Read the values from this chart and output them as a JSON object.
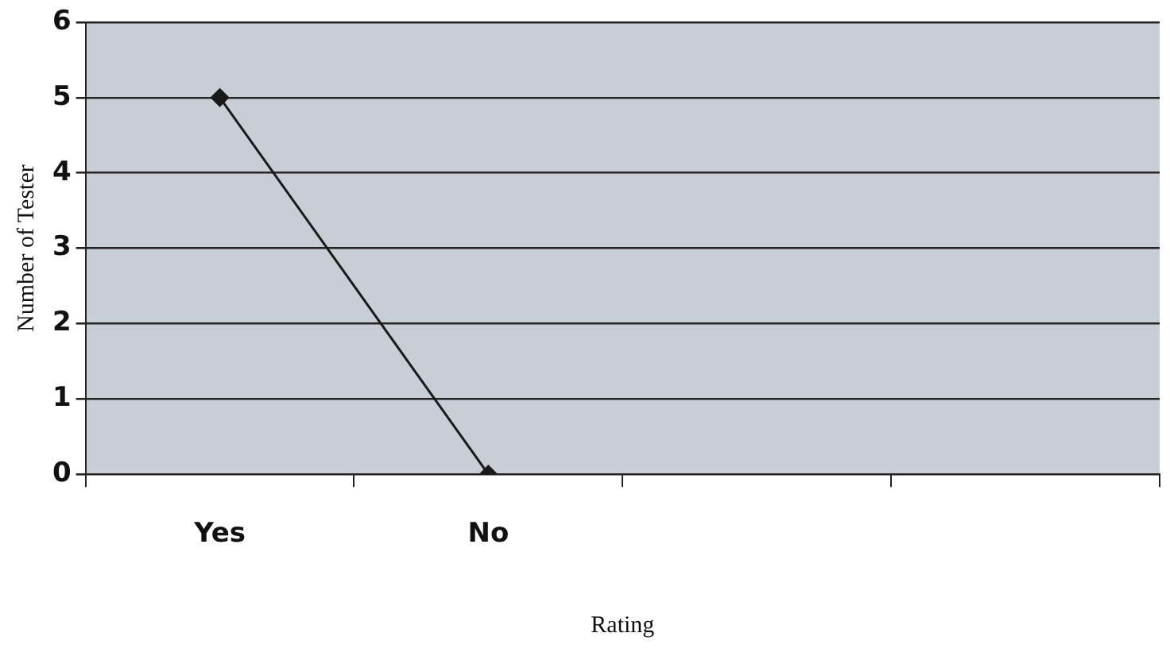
{
  "chart_data": {
    "type": "line",
    "xlabel": "Rating",
    "ylabel": "Number of Tester",
    "categories": [
      "Yes",
      "No",
      null,
      null
    ],
    "series": [
      {
        "color": "#1a1a1a",
        "values": [
          5,
          0,
          null,
          null
        ]
      }
    ],
    "ylim": [
      0,
      6
    ],
    "yticks": [
      0,
      1,
      2,
      3,
      4,
      5,
      6
    ],
    "grid": "y",
    "legend": false,
    "marker": "diamond",
    "line_style": "solid"
  }
}
